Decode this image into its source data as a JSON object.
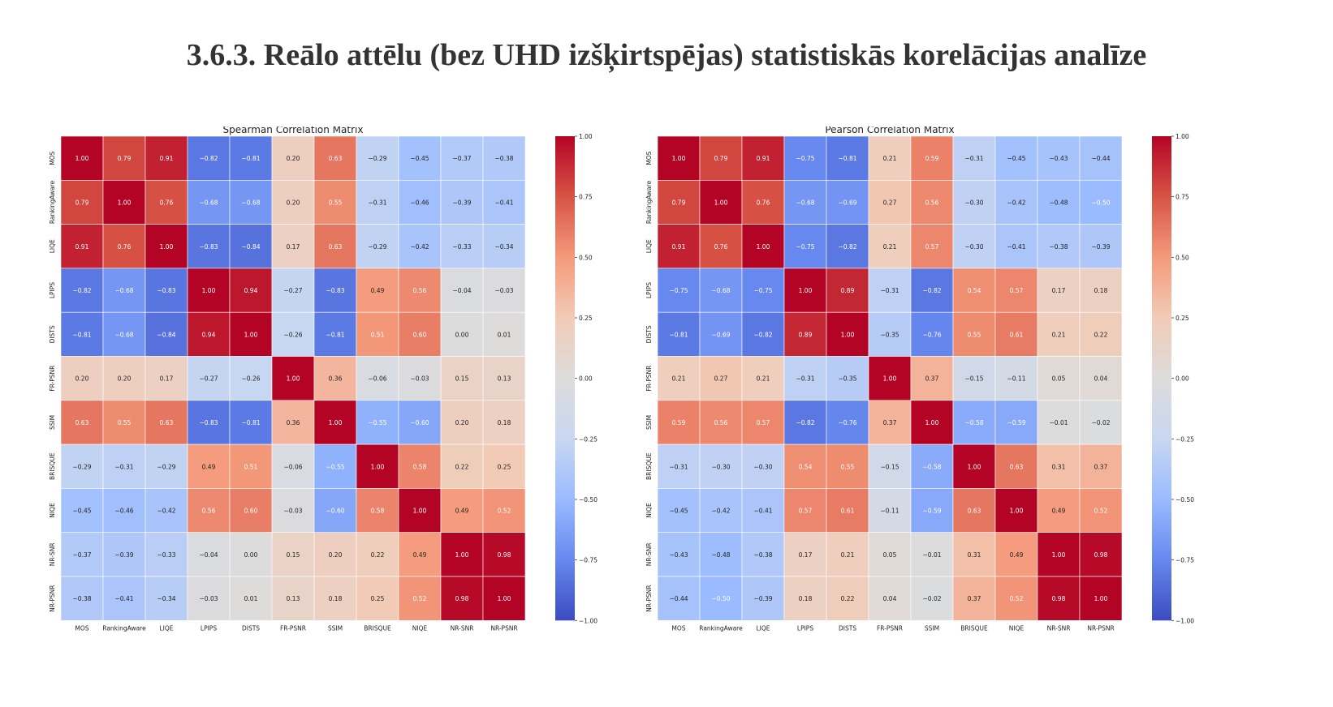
{
  "page": {
    "title": "3.6.3. Reālo attēlu (bez UHD izšķirtspējas) statistiskās korelācijas analīze"
  },
  "colormap": {
    "name": "coolwarm",
    "stops": [
      "#3b4cc0",
      "#6788ee",
      "#9abbff",
      "#c9d7f0",
      "#dddcdc",
      "#f2cbb7",
      "#f49a7b",
      "#d75445",
      "#b40426"
    ]
  },
  "chart_data": [
    {
      "type": "heatmap",
      "title": "Spearman Correlation Matrix",
      "labels": [
        "MOS",
        "RankingAware",
        "LIQE",
        "LPIPS",
        "DISTS",
        "FR-PSNR",
        "SSIM",
        "BRISQUE",
        "NIQE",
        "NR-SNR",
        "NR-PSNR"
      ],
      "values": [
        [
          1.0,
          0.79,
          0.91,
          -0.82,
          -0.81,
          0.2,
          0.63,
          -0.29,
          -0.45,
          -0.37,
          -0.38
        ],
        [
          0.79,
          1.0,
          0.76,
          -0.68,
          -0.68,
          0.2,
          0.55,
          -0.31,
          -0.46,
          -0.39,
          -0.41
        ],
        [
          0.91,
          0.76,
          1.0,
          -0.83,
          -0.84,
          0.17,
          0.63,
          -0.29,
          -0.42,
          -0.33,
          -0.34
        ],
        [
          -0.82,
          -0.68,
          -0.83,
          1.0,
          0.94,
          -0.27,
          -0.83,
          0.49,
          0.56,
          -0.04,
          -0.03
        ],
        [
          -0.81,
          -0.68,
          -0.84,
          0.94,
          1.0,
          -0.26,
          -0.81,
          0.51,
          0.6,
          0.0,
          0.01
        ],
        [
          0.2,
          0.2,
          0.17,
          -0.27,
          -0.26,
          1.0,
          0.36,
          -0.06,
          -0.03,
          0.15,
          0.13
        ],
        [
          0.63,
          0.55,
          0.63,
          -0.83,
          -0.81,
          0.36,
          1.0,
          -0.55,
          -0.6,
          0.2,
          0.18
        ],
        [
          -0.29,
          -0.31,
          -0.29,
          0.49,
          0.51,
          -0.06,
          -0.55,
          1.0,
          0.58,
          0.22,
          0.25
        ],
        [
          -0.45,
          -0.46,
          -0.42,
          0.56,
          0.6,
          -0.03,
          -0.6,
          0.58,
          1.0,
          0.49,
          0.52
        ],
        [
          -0.37,
          -0.39,
          -0.33,
          -0.04,
          0.0,
          0.15,
          0.2,
          0.22,
          0.49,
          1.0,
          0.98
        ],
        [
          -0.38,
          -0.41,
          -0.34,
          -0.03,
          0.01,
          0.13,
          0.18,
          0.25,
          0.52,
          0.98,
          1.0
        ]
      ],
      "value_range": [
        -1.0,
        1.0
      ],
      "colorbar_ticks": [
        "1.00",
        "0.75",
        "0.50",
        "0.25",
        "0.00",
        "−0.25",
        "−0.50",
        "−0.75",
        "−1.00"
      ]
    },
    {
      "type": "heatmap",
      "title": "Pearson Correlation Matrix",
      "labels": [
        "MOS",
        "RankingAware",
        "LIQE",
        "LPIPS",
        "DISTS",
        "FR-PSNR",
        "SSIM",
        "BRISQUE",
        "NIQE",
        "NR-SNR",
        "NR-PSNR"
      ],
      "values": [
        [
          1.0,
          0.79,
          0.91,
          -0.75,
          -0.81,
          0.21,
          0.59,
          -0.31,
          -0.45,
          -0.43,
          -0.44
        ],
        [
          0.79,
          1.0,
          0.76,
          -0.68,
          -0.69,
          0.27,
          0.56,
          -0.3,
          -0.42,
          -0.48,
          -0.5
        ],
        [
          0.91,
          0.76,
          1.0,
          -0.75,
          -0.82,
          0.21,
          0.57,
          -0.3,
          -0.41,
          -0.38,
          -0.39
        ],
        [
          -0.75,
          -0.68,
          -0.75,
          1.0,
          0.89,
          -0.31,
          -0.82,
          0.54,
          0.57,
          0.17,
          0.18
        ],
        [
          -0.81,
          -0.69,
          -0.82,
          0.89,
          1.0,
          -0.35,
          -0.76,
          0.55,
          0.61,
          0.21,
          0.22
        ],
        [
          0.21,
          0.27,
          0.21,
          -0.31,
          -0.35,
          1.0,
          0.37,
          -0.15,
          -0.11,
          0.05,
          0.04
        ],
        [
          0.59,
          0.56,
          0.57,
          -0.82,
          -0.76,
          0.37,
          1.0,
          -0.58,
          -0.59,
          -0.01,
          -0.02
        ],
        [
          -0.31,
          -0.3,
          -0.3,
          0.54,
          0.55,
          -0.15,
          -0.58,
          1.0,
          0.63,
          0.31,
          0.37
        ],
        [
          -0.45,
          -0.42,
          -0.41,
          0.57,
          0.61,
          -0.11,
          -0.59,
          0.63,
          1.0,
          0.49,
          0.52
        ],
        [
          -0.43,
          -0.48,
          -0.38,
          0.17,
          0.21,
          0.05,
          -0.01,
          0.31,
          0.49,
          1.0,
          0.98
        ],
        [
          -0.44,
          -0.5,
          -0.39,
          0.18,
          0.22,
          0.04,
          -0.02,
          0.37,
          0.52,
          0.98,
          1.0
        ]
      ],
      "value_range": [
        -1.0,
        1.0
      ],
      "colorbar_ticks": [
        "1.00",
        "0.75",
        "0.50",
        "0.25",
        "0.00",
        "−0.25",
        "−0.50",
        "−0.75",
        "−1.00"
      ]
    }
  ]
}
